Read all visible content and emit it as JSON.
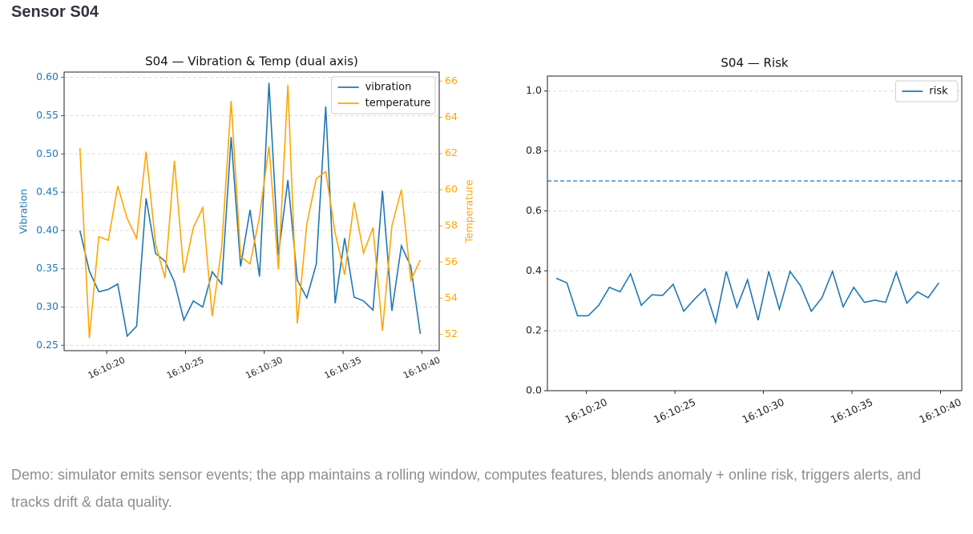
{
  "header": {
    "title": "Sensor S04"
  },
  "chart_data": [
    {
      "type": "line",
      "title": "S04 — Vibration & Temp (dual axis)",
      "ylabel": "Vibration",
      "y2label": "Temperature",
      "x": [
        18.3,
        18.9,
        19.5,
        20.1,
        20.7,
        21.3,
        21.9,
        22.5,
        23.1,
        23.7,
        24.3,
        24.9,
        25.5,
        26.1,
        26.7,
        27.3,
        27.9,
        28.5,
        29.1,
        29.7,
        30.3,
        30.9,
        31.5,
        32.1,
        32.7,
        33.3,
        33.9,
        34.5,
        35.1,
        35.7,
        36.3,
        36.9,
        37.5,
        38.1,
        38.7,
        39.3,
        39.9
      ],
      "xlim": [
        17.3,
        41.1
      ],
      "xticks": [
        {
          "value": 20,
          "label": "16:10:20"
        },
        {
          "value": 25,
          "label": "16:10:25"
        },
        {
          "value": 30,
          "label": "16:10:30"
        },
        {
          "value": 35,
          "label": "16:10:35"
        },
        {
          "value": 40,
          "label": "16:10:40"
        }
      ],
      "ylim": [
        0.243,
        0.607
      ],
      "yticks": [
        0.25,
        {
          "value": 0.3,
          "label": "0.30"
        },
        0.35,
        {
          "value": 0.4,
          "label": "0.40"
        },
        0.45,
        {
          "value": 0.5,
          "label": "0.50"
        },
        0.55,
        {
          "value": 0.6,
          "label": "0.60"
        }
      ],
      "y2lim": [
        51.1,
        66.5
      ],
      "y2ticks": [
        52,
        54,
        56,
        58,
        60,
        62,
        64,
        66
      ],
      "grid": true,
      "legend": "upper right",
      "series": [
        {
          "name": "vibration",
          "color": "#1f77b4",
          "axis": "y",
          "values": [
            0.4,
            0.347,
            0.32,
            0.323,
            0.33,
            0.262,
            0.275,
            0.442,
            0.37,
            0.36,
            0.333,
            0.283,
            0.308,
            0.3,
            0.346,
            0.33,
            0.522,
            0.353,
            0.427,
            0.34,
            0.593,
            0.368,
            0.466,
            0.335,
            0.312,
            0.356,
            0.562,
            0.305,
            0.39,
            0.313,
            0.308,
            0.296,
            0.452,
            0.295,
            0.38,
            0.353,
            0.265
          ]
        },
        {
          "name": "temperature",
          "color": "#ffa500",
          "axis": "y2",
          "values": [
            62.3,
            51.8,
            57.4,
            57.2,
            60.2,
            58.4,
            57.3,
            62.1,
            57.0,
            55.1,
            61.6,
            55.4,
            57.9,
            59.0,
            53.0,
            56.8,
            64.9,
            56.3,
            55.9,
            58.5,
            62.4,
            55.6,
            65.8,
            52.6,
            58.1,
            60.6,
            61.0,
            57.6,
            55.3,
            59.3,
            56.5,
            57.9,
            52.2,
            58.0,
            60.0,
            55.0,
            56.1
          ]
        }
      ]
    },
    {
      "type": "line",
      "title": "S04 — Risk",
      "x": [
        18.3,
        18.9,
        19.5,
        20.1,
        20.7,
        21.3,
        21.9,
        22.5,
        23.1,
        23.7,
        24.3,
        24.9,
        25.5,
        26.1,
        26.7,
        27.3,
        27.9,
        28.5,
        29.1,
        29.7,
        30.3,
        30.9,
        31.5,
        32.1,
        32.7,
        33.3,
        33.9,
        34.5,
        35.1,
        35.7,
        36.3,
        36.9,
        37.5,
        38.1,
        38.7,
        39.3,
        39.9
      ],
      "xlim": [
        17.8,
        41.2
      ],
      "xticks": [
        {
          "value": 20,
          "label": "16:10:20"
        },
        {
          "value": 25,
          "label": "16:10:25"
        },
        {
          "value": 30,
          "label": "16:10:30"
        },
        {
          "value": 35,
          "label": "16:10:35"
        },
        {
          "value": 40,
          "label": "16:10:40"
        }
      ],
      "ylim": [
        0,
        1.05
      ],
      "yticks": [
        {
          "value": 0,
          "label": "0.0"
        },
        0.2,
        0.4,
        0.6,
        0.8,
        {
          "value": 1,
          "label": "1.0"
        }
      ],
      "grid": true,
      "legend": "upper right",
      "hlines": [
        {
          "value": 0.7,
          "color": "#1f77b4",
          "style": "dashed"
        }
      ],
      "series": [
        {
          "name": "risk",
          "color": "#1f77b4",
          "axis": "y",
          "values": [
            0.375,
            0.36,
            0.25,
            0.25,
            0.285,
            0.345,
            0.33,
            0.39,
            0.285,
            0.32,
            0.318,
            0.355,
            0.265,
            0.305,
            0.34,
            0.228,
            0.398,
            0.278,
            0.37,
            0.235,
            0.398,
            0.272,
            0.398,
            0.35,
            0.265,
            0.31,
            0.398,
            0.28,
            0.345,
            0.295,
            0.302,
            0.295,
            0.395,
            0.292,
            0.33,
            0.31,
            0.36
          ]
        }
      ]
    }
  ],
  "caption": "Demo: simulator emits sensor events; the app maintains a rolling window, computes features, blends anomaly + online risk, triggers alerts, and tracks drift & data quality."
}
